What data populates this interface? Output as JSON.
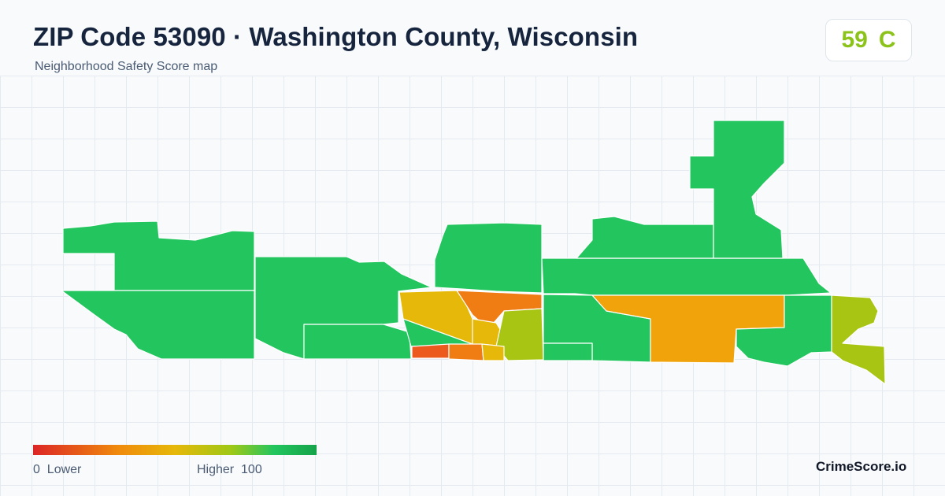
{
  "header": {
    "title": "ZIP Code 53090 · Washington County, Wisconsin",
    "subtitle": "Neighborhood Safety Score map"
  },
  "score_badge": {
    "score": "59",
    "grade": "C",
    "color": "#8cc31a"
  },
  "legend": {
    "min_value": "0",
    "min_label": "Lower",
    "max_label": "Higher",
    "max_value": "100",
    "gradient_colors": [
      "#dc2626",
      "#f08a0c",
      "#e6b80a",
      "#9ec816",
      "#22c55e",
      "#16a34a"
    ]
  },
  "brand": "CrimeScore.io",
  "map_colors": {
    "high_safety": "#22c55e",
    "mid_high": "#a8c514",
    "medium": "#e6b80a",
    "medium_low": "#f0a30a",
    "low": "#f07d14",
    "very_low": "#ec5a1e"
  }
}
